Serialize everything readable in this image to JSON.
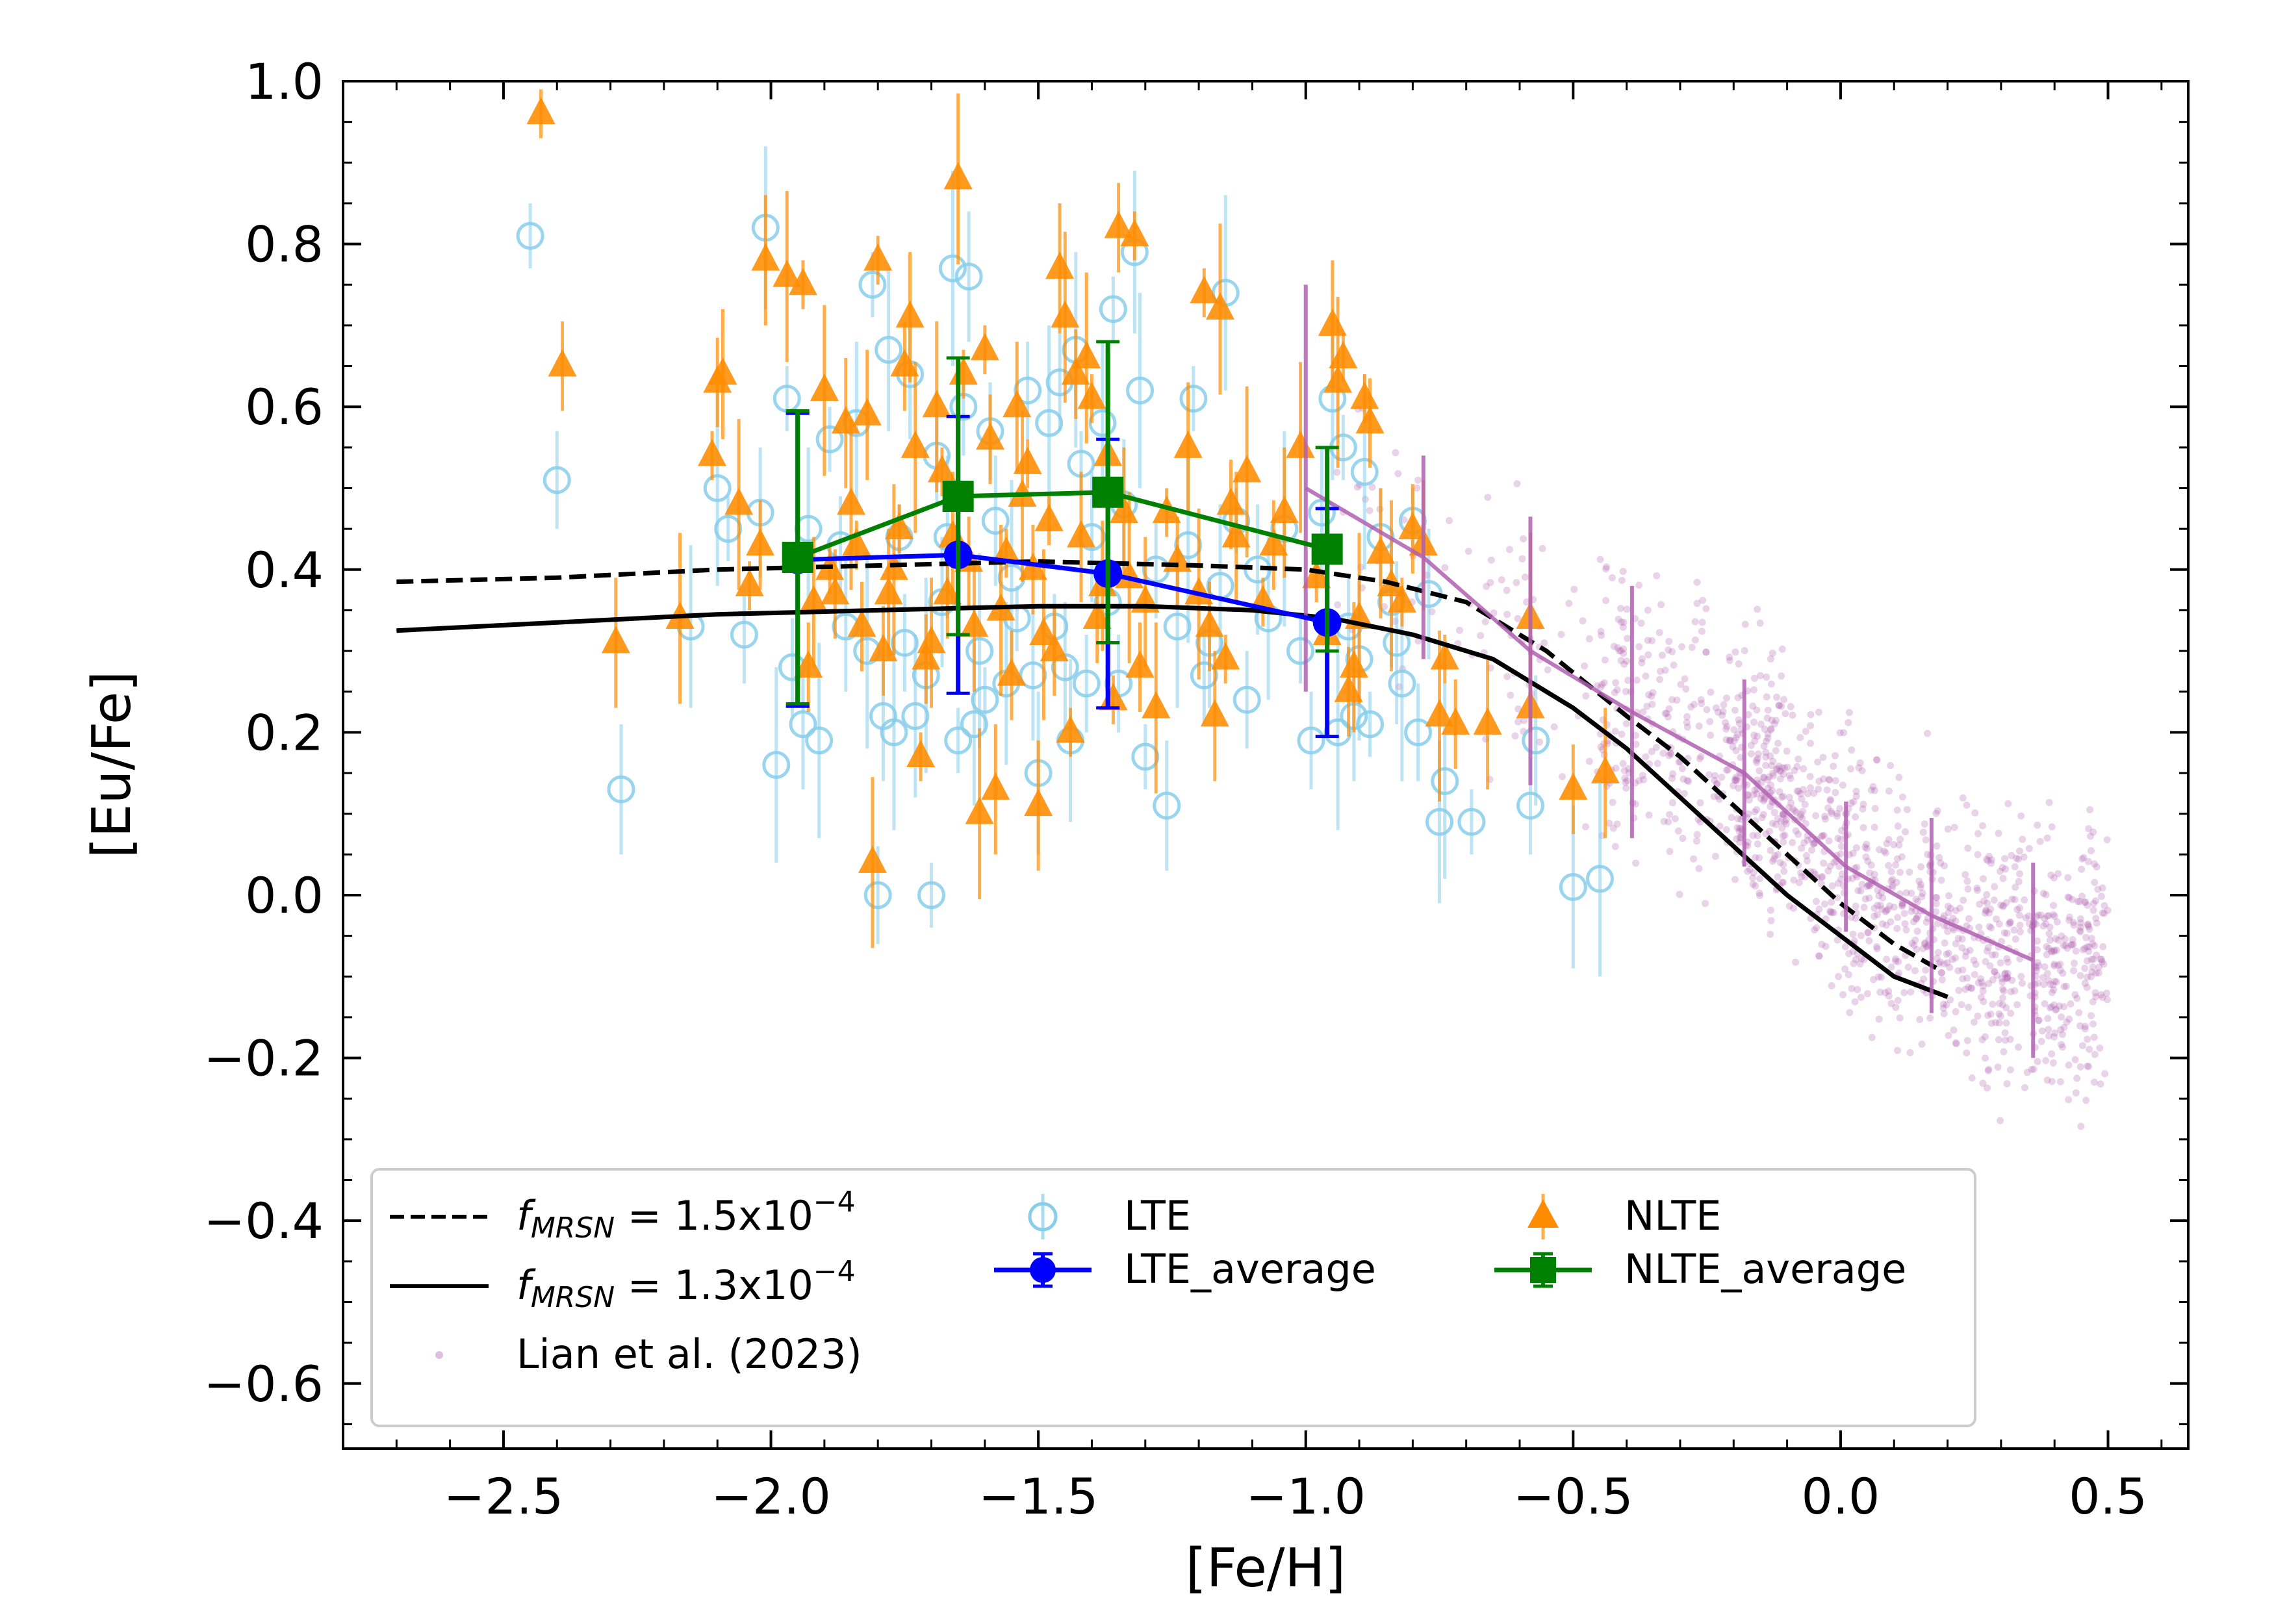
{
  "chart_data": {
    "type": "scatter",
    "xlabel": "[Fe/H]",
    "ylabel": "[Eu/Fe]",
    "xlim": [
      -2.8,
      0.65
    ],
    "ylim": [
      -0.68,
      1.0
    ],
    "xticks": [
      -2.5,
      -2.0,
      -1.5,
      -1.0,
      -0.5,
      0.0,
      0.5
    ],
    "yticks": [
      -0.6,
      -0.4,
      -0.2,
      0.0,
      0.2,
      0.4,
      0.6,
      0.8,
      1.0
    ],
    "xtick_labels": [
      "−2.5",
      "−2.0",
      "−1.5",
      "−1.0",
      "−0.5",
      "0.0",
      "0.5"
    ],
    "ytick_labels": [
      "−0.6",
      "−0.4",
      "−0.2",
      "0.0",
      "0.2",
      "0.4",
      "0.6",
      "0.8",
      "1.0"
    ],
    "legend_position": "lower-left",
    "colors": {
      "lte": "#87ceeb",
      "nlte": "#ff8c00",
      "lte_average": "#0000ff",
      "nlte_average": "#008000",
      "lian": "#b060b0",
      "model": "#000000"
    },
    "legend": [
      {
        "key": "dashed",
        "pre": "f",
        "sub": "MRSN",
        "mid": " = 1.5x10",
        "sup": "−4"
      },
      {
        "key": "solid",
        "pre": "f",
        "sub": "MRSN",
        "mid": " = 1.3x10",
        "sup": "−4"
      },
      {
        "key": "lian",
        "label": "Lian et al. (2023)"
      },
      {
        "key": "lte",
        "label": "LTE"
      },
      {
        "key": "lte_avg",
        "label": "LTE_average"
      },
      {
        "key": "nlte",
        "label": "NLTE"
      },
      {
        "key": "nlte_avg",
        "label": "NLTE_average"
      }
    ],
    "series": [
      {
        "name": "f_MRSN = 1.5x10^-4",
        "type": "line",
        "style": "dashed",
        "x": [
          -2.7,
          -2.4,
          -2.1,
          -1.8,
          -1.5,
          -1.2,
          -1.0,
          -0.85,
          -0.7,
          -0.55,
          -0.4,
          -0.3,
          -0.2,
          -0.1,
          0.0,
          0.1,
          0.18
        ],
        "y": [
          0.385,
          0.39,
          0.4,
          0.405,
          0.41,
          0.405,
          0.4,
          0.385,
          0.36,
          0.3,
          0.22,
          0.17,
          0.11,
          0.05,
          -0.01,
          -0.06,
          -0.09
        ]
      },
      {
        "name": "f_MRSN = 1.3x10^-4",
        "type": "line",
        "style": "solid",
        "x": [
          -2.7,
          -2.4,
          -2.1,
          -1.8,
          -1.5,
          -1.3,
          -1.1,
          -0.95,
          -0.8,
          -0.65,
          -0.5,
          -0.4,
          -0.3,
          -0.2,
          -0.1,
          0.0,
          0.1,
          0.2
        ],
        "y": [
          0.325,
          0.335,
          0.345,
          0.35,
          0.355,
          0.355,
          0.35,
          0.34,
          0.32,
          0.29,
          0.23,
          0.18,
          0.12,
          0.06,
          0.0,
          -0.05,
          -0.1,
          -0.125
        ]
      },
      {
        "name": "LTE_average",
        "type": "errorbar",
        "x": [
          -1.95,
          -1.65,
          -1.37,
          -0.96
        ],
        "y": [
          0.412,
          0.418,
          0.395,
          0.335
        ],
        "yerr": [
          0.18,
          0.17,
          0.165,
          0.14
        ]
      },
      {
        "name": "NLTE_average",
        "type": "errorbar",
        "x": [
          -1.95,
          -1.65,
          -1.37,
          -0.96
        ],
        "y": [
          0.415,
          0.49,
          0.495,
          0.425
        ],
        "yerr": [
          0.18,
          0.17,
          0.185,
          0.125
        ]
      },
      {
        "name": "Lian binned",
        "type": "errorbar-line",
        "x": [
          -1.0,
          -0.78,
          -0.58,
          -0.39,
          -0.18,
          0.01,
          0.17,
          0.36
        ],
        "y": [
          0.5,
          0.415,
          0.3,
          0.225,
          0.15,
          0.035,
          -0.025,
          -0.08
        ],
        "yerr": [
          0.25,
          0.125,
          0.165,
          0.155,
          0.115,
          0.08,
          0.12,
          0.12
        ]
      },
      {
        "name": "NLTE",
        "type": "scatter",
        "points": [
          [
            -2.43,
            0.96
          ],
          [
            -2.39,
            0.65
          ],
          [
            -2.29,
            0.31
          ],
          [
            -2.17,
            0.34
          ],
          [
            -2.11,
            0.54
          ],
          [
            -2.1,
            0.63
          ],
          [
            -2.09,
            0.64
          ],
          [
            -2.06,
            0.48
          ],
          [
            -2.04,
            0.38
          ],
          [
            -2.02,
            0.43
          ],
          [
            -2.01,
            0.78
          ],
          [
            -1.97,
            0.76
          ],
          [
            -1.94,
            0.75
          ],
          [
            -1.93,
            0.28
          ],
          [
            -1.92,
            0.36
          ],
          [
            -1.9,
            0.62
          ],
          [
            -1.89,
            0.4
          ],
          [
            -1.88,
            0.37
          ],
          [
            -1.86,
            0.58
          ],
          [
            -1.85,
            0.48
          ],
          [
            -1.84,
            0.43
          ],
          [
            -1.83,
            0.33
          ],
          [
            -1.82,
            0.59
          ],
          [
            -1.81,
            0.04
          ],
          [
            -1.8,
            0.78
          ],
          [
            -1.79,
            0.3
          ],
          [
            -1.78,
            0.37
          ],
          [
            -1.77,
            0.4
          ],
          [
            -1.76,
            0.45
          ],
          [
            -1.75,
            0.65
          ],
          [
            -1.74,
            0.71
          ],
          [
            -1.73,
            0.55
          ],
          [
            -1.72,
            0.17
          ],
          [
            -1.71,
            0.29
          ],
          [
            -1.7,
            0.31
          ],
          [
            -1.69,
            0.6
          ],
          [
            -1.68,
            0.52
          ],
          [
            -1.67,
            0.37
          ],
          [
            -1.66,
            0.44
          ],
          [
            -1.65,
            0.88
          ],
          [
            -1.64,
            0.64
          ],
          [
            -1.63,
            0.41
          ],
          [
            -1.62,
            0.33
          ],
          [
            -1.61,
            0.1
          ],
          [
            -1.6,
            0.67
          ],
          [
            -1.59,
            0.56
          ],
          [
            -1.58,
            0.13
          ],
          [
            -1.57,
            0.35
          ],
          [
            -1.56,
            0.42
          ],
          [
            -1.55,
            0.27
          ],
          [
            -1.54,
            0.6
          ],
          [
            -1.53,
            0.49
          ],
          [
            -1.52,
            0.53
          ],
          [
            -1.51,
            0.4
          ],
          [
            -1.5,
            0.11
          ],
          [
            -1.49,
            0.32
          ],
          [
            -1.48,
            0.46
          ],
          [
            -1.47,
            0.3
          ],
          [
            -1.46,
            0.77
          ],
          [
            -1.45,
            0.71
          ],
          [
            -1.44,
            0.2
          ],
          [
            -1.43,
            0.64
          ],
          [
            -1.42,
            0.44
          ],
          [
            -1.41,
            0.66
          ],
          [
            -1.4,
            0.61
          ],
          [
            -1.39,
            0.34
          ],
          [
            -1.38,
            0.38
          ],
          [
            -1.37,
            0.54
          ],
          [
            -1.36,
            0.24
          ],
          [
            -1.35,
            0.82
          ],
          [
            -1.34,
            0.47
          ],
          [
            -1.33,
            0.39
          ],
          [
            -1.32,
            0.81
          ],
          [
            -1.31,
            0.28
          ],
          [
            -1.3,
            0.36
          ],
          [
            -1.28,
            0.23
          ],
          [
            -1.26,
            0.47
          ],
          [
            -1.24,
            0.41
          ],
          [
            -1.22,
            0.55
          ],
          [
            -1.2,
            0.37
          ],
          [
            -1.19,
            0.74
          ],
          [
            -1.18,
            0.33
          ],
          [
            -1.17,
            0.22
          ],
          [
            -1.16,
            0.72
          ],
          [
            -1.15,
            0.29
          ],
          [
            -1.14,
            0.48
          ],
          [
            -1.13,
            0.44
          ],
          [
            -1.11,
            0.52
          ],
          [
            -1.08,
            0.36
          ],
          [
            -1.06,
            0.43
          ],
          [
            -1.04,
            0.47
          ],
          [
            -1.01,
            0.55
          ],
          [
            -0.98,
            0.39
          ],
          [
            -0.96,
            0.32
          ],
          [
            -0.95,
            0.7
          ],
          [
            -0.94,
            0.63
          ],
          [
            -0.93,
            0.66
          ],
          [
            -0.92,
            0.25
          ],
          [
            -0.91,
            0.28
          ],
          [
            -0.9,
            0.34
          ],
          [
            -0.89,
            0.61
          ],
          [
            -0.88,
            0.58
          ],
          [
            -0.86,
            0.42
          ],
          [
            -0.84,
            0.38
          ],
          [
            -0.82,
            0.36
          ],
          [
            -0.8,
            0.45
          ],
          [
            -0.78,
            0.43
          ],
          [
            -0.75,
            0.22
          ],
          [
            -0.74,
            0.29
          ],
          [
            -0.72,
            0.21
          ],
          [
            -0.66,
            0.21
          ],
          [
            -0.58,
            0.34
          ],
          [
            -0.58,
            0.23
          ],
          [
            -0.5,
            0.13
          ],
          [
            -0.44,
            0.15
          ]
        ]
      },
      {
        "name": "LTE",
        "type": "scatter",
        "points": [
          [
            -2.45,
            0.81
          ],
          [
            -2.4,
            0.51
          ],
          [
            -2.28,
            0.13
          ],
          [
            -2.15,
            0.33
          ],
          [
            -2.1,
            0.5
          ],
          [
            -2.08,
            0.45
          ],
          [
            -2.05,
            0.32
          ],
          [
            -2.02,
            0.47
          ],
          [
            -2.01,
            0.82
          ],
          [
            -1.99,
            0.16
          ],
          [
            -1.97,
            0.61
          ],
          [
            -1.96,
            0.28
          ],
          [
            -1.94,
            0.21
          ],
          [
            -1.93,
            0.45
          ],
          [
            -1.91,
            0.19
          ],
          [
            -1.89,
            0.56
          ],
          [
            -1.87,
            0.43
          ],
          [
            -1.86,
            0.33
          ],
          [
            -1.84,
            0.58
          ],
          [
            -1.82,
            0.3
          ],
          [
            -1.81,
            0.75
          ],
          [
            -1.8,
            0.0
          ],
          [
            -1.79,
            0.22
          ],
          [
            -1.78,
            0.67
          ],
          [
            -1.77,
            0.2
          ],
          [
            -1.76,
            0.44
          ],
          [
            -1.75,
            0.31
          ],
          [
            -1.74,
            0.64
          ],
          [
            -1.73,
            0.22
          ],
          [
            -1.71,
            0.27
          ],
          [
            -1.7,
            0.0
          ],
          [
            -1.69,
            0.54
          ],
          [
            -1.68,
            0.36
          ],
          [
            -1.67,
            0.44
          ],
          [
            -1.66,
            0.77
          ],
          [
            -1.65,
            0.19
          ],
          [
            -1.64,
            0.6
          ],
          [
            -1.63,
            0.76
          ],
          [
            -1.62,
            0.21
          ],
          [
            -1.61,
            0.3
          ],
          [
            -1.6,
            0.24
          ],
          [
            -1.59,
            0.57
          ],
          [
            -1.58,
            0.46
          ],
          [
            -1.56,
            0.26
          ],
          [
            -1.55,
            0.39
          ],
          [
            -1.54,
            0.34
          ],
          [
            -1.52,
            0.62
          ],
          [
            -1.51,
            0.27
          ],
          [
            -1.5,
            0.15
          ],
          [
            -1.48,
            0.58
          ],
          [
            -1.47,
            0.33
          ],
          [
            -1.46,
            0.63
          ],
          [
            -1.45,
            0.28
          ],
          [
            -1.44,
            0.19
          ],
          [
            -1.43,
            0.67
          ],
          [
            -1.42,
            0.53
          ],
          [
            -1.41,
            0.26
          ],
          [
            -1.4,
            0.44
          ],
          [
            -1.38,
            0.58
          ],
          [
            -1.37,
            0.36
          ],
          [
            -1.36,
            0.72
          ],
          [
            -1.35,
            0.26
          ],
          [
            -1.34,
            0.48
          ],
          [
            -1.32,
            0.79
          ],
          [
            -1.31,
            0.62
          ],
          [
            -1.3,
            0.17
          ],
          [
            -1.28,
            0.4
          ],
          [
            -1.26,
            0.11
          ],
          [
            -1.24,
            0.33
          ],
          [
            -1.22,
            0.43
          ],
          [
            -1.21,
            0.61
          ],
          [
            -1.19,
            0.27
          ],
          [
            -1.18,
            0.31
          ],
          [
            -1.16,
            0.38
          ],
          [
            -1.15,
            0.74
          ],
          [
            -1.13,
            0.46
          ],
          [
            -1.11,
            0.24
          ],
          [
            -1.09,
            0.4
          ],
          [
            -1.07,
            0.34
          ],
          [
            -1.04,
            0.45
          ],
          [
            -1.01,
            0.3
          ],
          [
            -0.99,
            0.19
          ],
          [
            -0.97,
            0.47
          ],
          [
            -0.95,
            0.61
          ],
          [
            -0.94,
            0.2
          ],
          [
            -0.93,
            0.55
          ],
          [
            -0.92,
            0.33
          ],
          [
            -0.91,
            0.22
          ],
          [
            -0.9,
            0.29
          ],
          [
            -0.89,
            0.52
          ],
          [
            -0.88,
            0.21
          ],
          [
            -0.86,
            0.44
          ],
          [
            -0.84,
            0.36
          ],
          [
            -0.83,
            0.31
          ],
          [
            -0.82,
            0.26
          ],
          [
            -0.8,
            0.46
          ],
          [
            -0.79,
            0.2
          ],
          [
            -0.77,
            0.37
          ],
          [
            -0.75,
            0.09
          ],
          [
            -0.74,
            0.14
          ],
          [
            -0.69,
            0.09
          ],
          [
            -0.58,
            0.11
          ],
          [
            -0.57,
            0.19
          ],
          [
            -0.5,
            0.01
          ],
          [
            -0.45,
            0.02
          ]
        ]
      }
    ]
  }
}
